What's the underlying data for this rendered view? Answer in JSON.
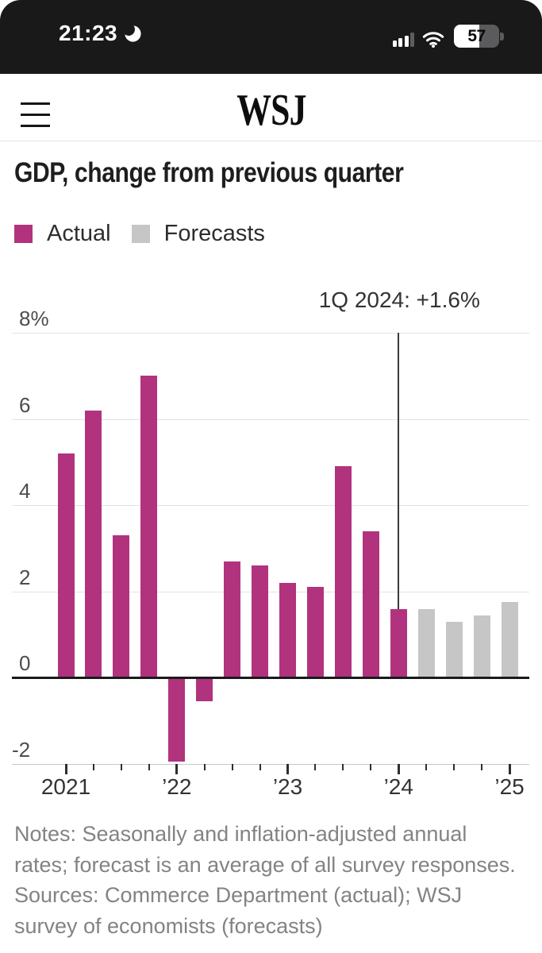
{
  "status_bar": {
    "time": "21:23",
    "battery_percent": "57",
    "signal_bars_filled": 3,
    "signal_bars_total": 4
  },
  "header": {
    "logo": "WSJ"
  },
  "chart_data": {
    "type": "bar",
    "title": "GDP, change from previous quarter",
    "unit": "%",
    "ylim": [
      -2,
      8
    ],
    "grid": true,
    "legend_position": "top-left",
    "y_ticks": [
      {
        "label": "8%",
        "value": 8
      },
      {
        "label": "6",
        "value": 6
      },
      {
        "label": "4",
        "value": 4
      },
      {
        "label": "2",
        "value": 2
      },
      {
        "label": "0",
        "value": 0
      },
      {
        "label": "-2",
        "value": -2
      }
    ],
    "x_quarters": [
      "2021 Q1",
      "2021 Q2",
      "2021 Q3",
      "2021 Q4",
      "2022 Q1",
      "2022 Q2",
      "2022 Q3",
      "2022 Q4",
      "2023 Q1",
      "2023 Q2",
      "2023 Q3",
      "2023 Q4",
      "2024 Q1",
      "2024 Q2",
      "2024 Q3",
      "2024 Q4",
      "2025 Q1"
    ],
    "x_year_ticks": [
      {
        "label": "2021",
        "tick": 0
      },
      {
        "label": "’22",
        "tick": 4
      },
      {
        "label": "’23",
        "tick": 8
      },
      {
        "label": "’24",
        "tick": 12
      },
      {
        "label": "’25",
        "tick": 16
      }
    ],
    "series": [
      {
        "name": "Actual",
        "color": "#b1337d",
        "start_tick": 0,
        "values": [
          5.2,
          6.2,
          3.3,
          7.0,
          -2.0,
          -0.6,
          2.7,
          2.6,
          2.2,
          2.1,
          4.9,
          3.4,
          1.6
        ]
      },
      {
        "name": "Forecasts",
        "color": "#c6c6c6",
        "start_tick": 13,
        "values": [
          1.6,
          1.3,
          1.45,
          1.75
        ]
      }
    ],
    "annotation": {
      "text": "1Q 2024: +1.6%",
      "tick": 12,
      "line_to_value": 1.6
    },
    "notes_lines": [
      "Notes: Seasonally and inflation-adjusted annual",
      "rates; forecast is an average of all survey responses.",
      "Sources: Commerce Department (actual); WSJ",
      "survey of economists (forecasts)"
    ]
  }
}
